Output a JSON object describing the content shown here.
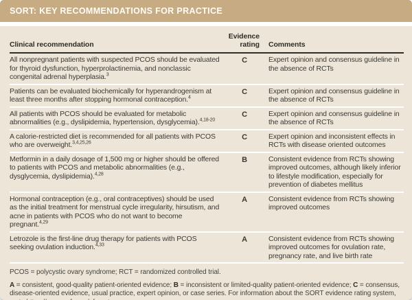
{
  "title": "SORT: KEY RECOMMENDATIONS FOR PRACTICE",
  "table": {
    "columns": {
      "recommendation": "Clinical recommendation",
      "rating_line1": "Evidence",
      "rating_line2": "rating",
      "comments": "Comments"
    },
    "rows": [
      {
        "recommendation": "All nonpregnant patients with suspected PCOS should be evaluated for thyroid dysfunction, hyperprolactinemia, and nonclassic congenital adrenal hyperplasia.",
        "citation": "3",
        "rating": "C",
        "comment": "Expert opinion and consensus guideline in the absence of RCTs"
      },
      {
        "recommendation": "Patients can be evaluated biochemically for hyperandrogenism at least three months after stopping hormonal contraception.",
        "citation": "4",
        "rating": "C",
        "comment": "Expert opinion and consensus guideline in the absence of RCTs"
      },
      {
        "recommendation": "All patients with PCOS should be evaluated for metabolic abnormalities (e.g., dyslipidemia, hypertension, dysglycemia).",
        "citation": "4,18-20",
        "rating": "C",
        "comment": "Expert opinion and consensus guideline in the absence of RCTs"
      },
      {
        "recommendation": "A calorie-restricted diet is recommended for all patients with PCOS who are overweight.",
        "citation": "3,4,25,26",
        "rating": "C",
        "comment": "Expert opinion and inconsistent effects in RCTs with disease oriented outcomes"
      },
      {
        "recommendation": "Metformin in a daily dosage of 1,500 mg or higher should be offered to patients with PCOS and metabolic abnormalities (e.g., dysglycemia, dyslipidemia).",
        "citation": "4,28",
        "rating": "B",
        "comment": "Consistent evidence from RCTs showing improved outcomes, although likely inferior to lifestyle modification, especially for prevention of diabetes mellitus"
      },
      {
        "recommendation": "Hormonal contraception (e.g., oral contraceptives) should be used as the initial treatment for menstrual cycle irregularity, hirsutism, and acne in patients with PCOS who do not want to become pregnant.",
        "citation": "4,29",
        "rating": "A",
        "comment": "Consistent evidence from RCTs showing improved outcomes"
      },
      {
        "recommendation": "Letrozole is the first-line drug therapy for patients with PCOS seeking ovulation induction.",
        "citation": "4,33",
        "rating": "A",
        "comment": "Consistent evidence from RCTs showing improved outcomes for ovulation rate, pregnancy rate, and live birth rate"
      }
    ]
  },
  "footnotes": {
    "abbreviations": "PCOS = polycystic ovary syndrome; RCT = randomized controlled trial.",
    "rating_key_segments": [
      {
        "text": "A",
        "bold": true
      },
      {
        "text": " = consistent, good-quality patient-oriented evidence; ",
        "bold": false
      },
      {
        "text": "B",
        "bold": true
      },
      {
        "text": " = inconsistent or limited-quality patient-oriented evidence; ",
        "bold": false
      },
      {
        "text": "C",
        "bold": true
      },
      {
        "text": " = consensus, disease-oriented evidence, usual practice, expert opinion, or case series. For information about the SORT evidence rating system, go to https://www.aafp.org/afpsort.",
        "bold": false
      }
    ]
  },
  "colors": {
    "title_band": "#c6ab83",
    "body_background": "#ece5d8",
    "header_rule": "#2f2d28",
    "row_divider": "#ffffff",
    "body_text": "#3c3a34"
  }
}
